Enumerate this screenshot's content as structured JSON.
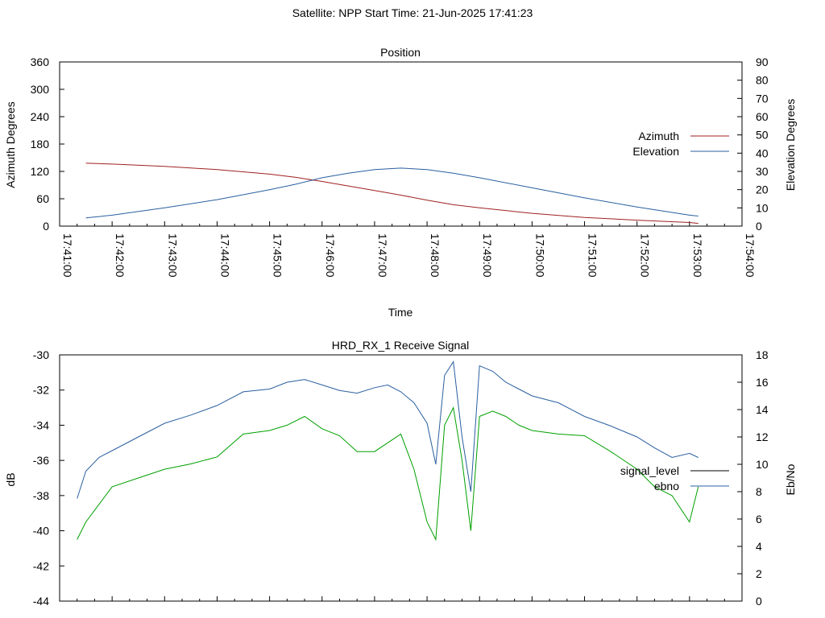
{
  "header": {
    "title": "Satellite: NPP    Start Time: 21-Jun-2025 17:41:23"
  },
  "chart_data": [
    {
      "type": "line",
      "title": "Position",
      "xlabel": "Time",
      "ylabel": "Azimuth Degrees",
      "y2label": "Elevation Degrees",
      "x_range": [
        "17:41:00",
        "17:54:00"
      ],
      "x_ticks": [
        "17:41:00",
        "17:42:00",
        "17:43:00",
        "17:44:00",
        "17:45:00",
        "17:46:00",
        "17:47:00",
        "17:48:00",
        "17:49:00",
        "17:50:00",
        "17:51:00",
        "17:52:00",
        "17:53:00",
        "17:54:00"
      ],
      "ylim": [
        0,
        360
      ],
      "y_ticks": [
        0,
        60,
        120,
        180,
        240,
        300,
        360
      ],
      "y2lim": [
        0,
        90
      ],
      "y2_ticks": [
        0,
        10,
        20,
        30,
        40,
        50,
        60,
        70,
        80,
        90
      ],
      "legend_position": "right",
      "series": [
        {
          "name": "Azimuth",
          "axis": "y",
          "color": "#a02020",
          "x": [
            "17:41:30",
            "17:42:00",
            "17:43:00",
            "17:44:00",
            "17:45:00",
            "17:45:30",
            "17:46:00",
            "17:46:30",
            "17:47:00",
            "17:47:30",
            "17:48:00",
            "17:48:30",
            "17:49:00",
            "17:50:00",
            "17:51:00",
            "17:52:00",
            "17:53:00",
            "17:53:10"
          ],
          "values": [
            138,
            136,
            131,
            124,
            114,
            107,
            98,
            88,
            78,
            68,
            57,
            47,
            40,
            28,
            19,
            13,
            8,
            6
          ]
        },
        {
          "name": "Elevation",
          "axis": "y2",
          "color": "#2a5fa0",
          "x": [
            "17:41:30",
            "17:42:00",
            "17:43:00",
            "17:44:00",
            "17:45:00",
            "17:45:30",
            "17:46:00",
            "17:46:30",
            "17:47:00",
            "17:47:30",
            "17:48:00",
            "17:48:30",
            "17:49:00",
            "17:50:00",
            "17:51:00",
            "17:52:00",
            "17:53:00",
            "17:53:10"
          ],
          "values": [
            4.5,
            6,
            10,
            14.5,
            20,
            23,
            26.5,
            29,
            31,
            31.8,
            31,
            29,
            26.5,
            21,
            15.5,
            10.5,
            6,
            5.5
          ]
        }
      ]
    },
    {
      "type": "line",
      "title": "HRD_RX_1 Receive Signal",
      "xlabel": "",
      "ylabel": "dB",
      "y2label": "Eb/No",
      "ylim": [
        -44,
        -30
      ],
      "y_ticks": [
        -44,
        -42,
        -40,
        -38,
        -36,
        -34,
        -32,
        -30
      ],
      "y2lim": [
        0,
        18
      ],
      "y2_ticks": [
        0,
        2,
        4,
        6,
        8,
        10,
        12,
        14,
        16,
        18
      ],
      "x_range": [
        "17:41:00",
        "17:54:00"
      ],
      "legend_position": "right",
      "series": [
        {
          "name": "signal_level",
          "axis": "y",
          "color": "#00a000",
          "x": [
            "17:41:20",
            "17:41:30",
            "17:41:45",
            "17:42:00",
            "17:42:30",
            "17:43:00",
            "17:43:30",
            "17:44:00",
            "17:44:30",
            "17:45:00",
            "17:45:20",
            "17:45:40",
            "17:46:00",
            "17:46:20",
            "17:46:40",
            "17:47:00",
            "17:47:15",
            "17:47:30",
            "17:47:45",
            "17:48:00",
            "17:48:10",
            "17:48:20",
            "17:48:30",
            "17:48:40",
            "17:48:50",
            "17:49:00",
            "17:49:15",
            "17:49:30",
            "17:49:45",
            "17:50:00",
            "17:50:30",
            "17:51:00",
            "17:51:30",
            "17:52:00",
            "17:52:20",
            "17:52:40",
            "17:53:00",
            "17:53:10"
          ],
          "values": [
            -40.5,
            -39.5,
            -38.5,
            -37.5,
            -37,
            -36.5,
            -36.2,
            -35.8,
            -34.5,
            -34.3,
            -34,
            -33.5,
            -34.2,
            -34.6,
            -35.5,
            -35.5,
            -35,
            -34.5,
            -36.5,
            -39.5,
            -40.5,
            -34,
            -33,
            -36,
            -40,
            -33.5,
            -33.2,
            -33.5,
            -34,
            -34.3,
            -34.5,
            -34.6,
            -35.5,
            -36.5,
            -37.5,
            -38,
            -39.5,
            -37.5
          ]
        },
        {
          "name": "ebno",
          "axis": "y2",
          "color": "#2a5fa0",
          "x": [
            "17:41:20",
            "17:41:30",
            "17:41:45",
            "17:42:00",
            "17:42:30",
            "17:43:00",
            "17:43:30",
            "17:44:00",
            "17:44:30",
            "17:45:00",
            "17:45:20",
            "17:45:40",
            "17:46:00",
            "17:46:20",
            "17:46:40",
            "17:47:00",
            "17:47:15",
            "17:47:30",
            "17:47:45",
            "17:48:00",
            "17:48:10",
            "17:48:20",
            "17:48:30",
            "17:48:40",
            "17:48:50",
            "17:49:00",
            "17:49:15",
            "17:49:30",
            "17:49:45",
            "17:50:00",
            "17:50:30",
            "17:51:00",
            "17:51:30",
            "17:52:00",
            "17:52:20",
            "17:52:40",
            "17:53:00",
            "17:53:10"
          ],
          "values": [
            7.5,
            9.5,
            10.5,
            11,
            12,
            13,
            13.6,
            14.3,
            15.3,
            15.5,
            16,
            16.2,
            15.8,
            15.4,
            15.2,
            15.6,
            15.8,
            15.3,
            14.5,
            13,
            10,
            16.5,
            17.5,
            12,
            8,
            17.2,
            16.8,
            16,
            15.5,
            15,
            14.5,
            13.5,
            12.8,
            12,
            11.2,
            10.5,
            10.8,
            10.5
          ]
        }
      ]
    }
  ]
}
